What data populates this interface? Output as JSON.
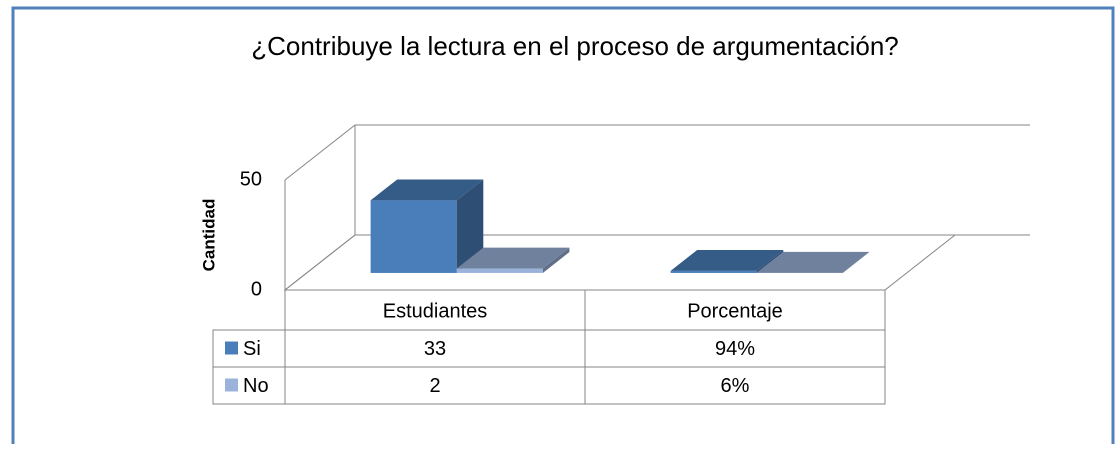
{
  "chart_data": {
    "type": "bar3d",
    "title": "¿Contribuye la lectura en el proceso de argumentación?",
    "y_label": "Cantidad",
    "categories": [
      "Estudiantes",
      "Porcentaje"
    ],
    "series": [
      {
        "name": "Si",
        "color": "#4a7ebb",
        "values": [
          33,
          0.94
        ],
        "value_labels": [
          "33",
          "94%"
        ]
      },
      {
        "name": "No",
        "color": "#9bb3da",
        "values": [
          2,
          0.06
        ],
        "value_labels": [
          "2",
          "6%"
        ]
      }
    ],
    "ylim": [
      0,
      50
    ],
    "yticks": [
      0,
      50
    ],
    "grid": true,
    "data_table": true
  }
}
